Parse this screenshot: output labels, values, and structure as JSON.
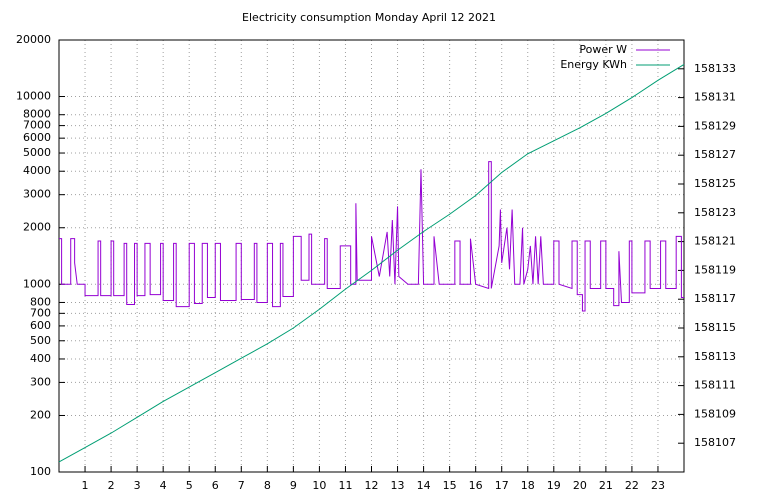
{
  "chart_data": {
    "type": "line",
    "title": "Electricity consumption Monday April 12 2021",
    "xlim": [
      0,
      24
    ],
    "xticks": [
      1,
      2,
      3,
      4,
      5,
      6,
      7,
      8,
      9,
      10,
      11,
      12,
      13,
      14,
      15,
      16,
      17,
      18,
      19,
      20,
      21,
      22,
      23
    ],
    "ylim": [
      100,
      20000
    ],
    "yscale": "log",
    "yticks": [
      100,
      200,
      300,
      400,
      500,
      600,
      700,
      800,
      1000,
      2000,
      3000,
      4000,
      5000,
      6000,
      7000,
      8000,
      10000,
      20000
    ],
    "y2lim": [
      158105,
      158135
    ],
    "y2ticks": [
      158107,
      158109,
      158111,
      158113,
      158115,
      158117,
      158119,
      158121,
      158123,
      158125,
      158127,
      158129,
      158131,
      158133
    ],
    "grid": true,
    "legend": "top-right",
    "series": [
      {
        "name": "Power W",
        "color": "#9400d3",
        "x": [
          0,
          0.1,
          0.1,
          0.45,
          0.45,
          0.6,
          0.6,
          0.7,
          1.0,
          1.0,
          1.5,
          1.5,
          1.6,
          1.6,
          2.0,
          2.0,
          2.1,
          2.1,
          2.5,
          2.5,
          2.6,
          2.6,
          2.9,
          2.9,
          3.0,
          3.0,
          3.3,
          3.3,
          3.5,
          3.5,
          3.9,
          3.9,
          4.0,
          4.0,
          4.4,
          4.4,
          4.5,
          4.5,
          5.0,
          5.0,
          5.2,
          5.2,
          5.5,
          5.5,
          5.7,
          5.7,
          6.0,
          6.0,
          6.2,
          6.2,
          6.8,
          6.8,
          7.0,
          7.0,
          7.5,
          7.5,
          7.6,
          7.6,
          8.0,
          8.0,
          8.2,
          8.2,
          8.5,
          8.5,
          8.6,
          8.6,
          9.0,
          9.0,
          9.3,
          9.3,
          9.6,
          9.6,
          9.7,
          9.7,
          10.2,
          10.2,
          10.3,
          10.3,
          10.8,
          10.8,
          11.2,
          11.2,
          11.4,
          11.4,
          11.45,
          12.0,
          12.0,
          12.3,
          12.6,
          12.7,
          12.8,
          12.9,
          13.0,
          13.05,
          13.4,
          13.8,
          13.9,
          14.0,
          14.4,
          14.4,
          14.6,
          15.2,
          15.2,
          15.4,
          15.4,
          15.8,
          15.8,
          16.0,
          16.5,
          16.5,
          16.6,
          16.6,
          16.9,
          16.95,
          17.0,
          17.2,
          17.3,
          17.4,
          17.5,
          17.7,
          17.8,
          17.85,
          18.0,
          18.1,
          18.2,
          18.3,
          18.4,
          18.5,
          18.6,
          19.0,
          19.0,
          19.2,
          19.2,
          19.7,
          19.7,
          19.9,
          19.9,
          20.1,
          20.1,
          20.2,
          20.2,
          20.4,
          20.4,
          20.8,
          20.8,
          21.0,
          21.0,
          21.3,
          21.3,
          21.5,
          21.5,
          21.6,
          21.9,
          21.9,
          22.0,
          22.0,
          22.5,
          22.5,
          22.7,
          22.7,
          23.1,
          23.1,
          23.3,
          23.3,
          23.7,
          23.7,
          23.9,
          23.9,
          24
        ],
        "values": [
          1750,
          1750,
          1000,
          1000,
          1750,
          1750,
          1300,
          1000,
          1000,
          870,
          870,
          1700,
          1700,
          870,
          870,
          1700,
          1700,
          870,
          870,
          1650,
          1650,
          780,
          780,
          1650,
          1650,
          870,
          870,
          1650,
          1650,
          880,
          880,
          1650,
          1650,
          820,
          820,
          1650,
          1650,
          760,
          760,
          1650,
          1650,
          790,
          790,
          1650,
          1650,
          850,
          850,
          1650,
          1650,
          820,
          820,
          1650,
          1650,
          830,
          830,
          1650,
          1650,
          800,
          800,
          1650,
          1650,
          760,
          760,
          1650,
          1650,
          860,
          860,
          1800,
          1800,
          1050,
          1050,
          1850,
          1850,
          1000,
          1000,
          1750,
          1750,
          950,
          950,
          1600,
          1600,
          1000,
          1000,
          2700,
          1050,
          1050,
          1800,
          1100,
          1900,
          1100,
          2200,
          1000,
          2600,
          1100,
          1000,
          1000,
          4100,
          1000,
          1000,
          1800,
          1000,
          1000,
          1700,
          1700,
          1000,
          1000,
          1750,
          1000,
          950,
          4500,
          4500,
          950,
          1600,
          2500,
          1300,
          2000,
          1200,
          2500,
          1000,
          1000,
          2000,
          1000,
          1200,
          1600,
          1000,
          1800,
          1000,
          1800,
          1000,
          1000,
          1700,
          1700,
          1000,
          950,
          1700,
          1700,
          880,
          880,
          720,
          720,
          1700,
          1700,
          950,
          950,
          1700,
          1700,
          950,
          950,
          770,
          770,
          1500,
          800,
          800,
          1700,
          1700,
          900,
          900,
          1700,
          1700,
          950,
          950,
          1700,
          1700,
          950,
          950,
          1800,
          1800,
          850,
          850
        ]
      },
      {
        "name": "Energy KWh",
        "color": "#009e73",
        "axis": "y2",
        "x": [
          0,
          1,
          2,
          3,
          4,
          5,
          6,
          7,
          8,
          9,
          10,
          11,
          12,
          13,
          14,
          15,
          16,
          17,
          18,
          19,
          20,
          21,
          22,
          23,
          24
        ],
        "values": [
          158105.7,
          158106.7,
          158107.7,
          158108.8,
          158109.9,
          158110.9,
          158111.9,
          158112.9,
          158113.9,
          158115.0,
          158116.3,
          158117.7,
          158119.0,
          158120.4,
          158121.7,
          158122.9,
          158124.2,
          158125.8,
          158127.1,
          158128.0,
          158128.9,
          158129.9,
          158131.0,
          158132.2,
          158133.3
        ]
      }
    ]
  }
}
